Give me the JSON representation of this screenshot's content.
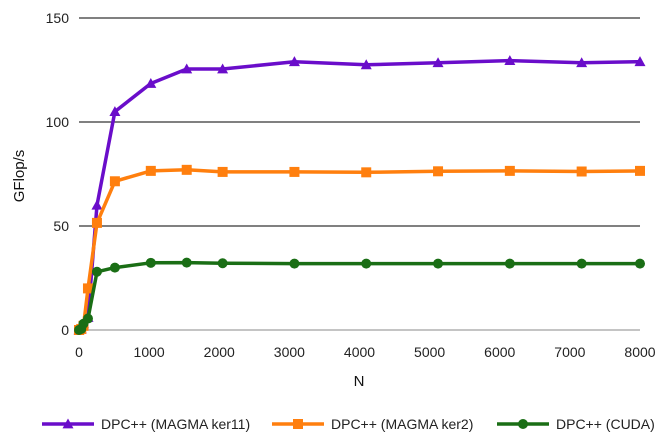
{
  "chart_data": {
    "type": "line",
    "xlabel": "N",
    "ylabel": "GFlop/s",
    "xlim": [
      0,
      8000
    ],
    "ylim": [
      0,
      150
    ],
    "xticks": [
      0,
      1000,
      2000,
      3000,
      4000,
      5000,
      6000,
      7000,
      8000
    ],
    "yticks": [
      0,
      50,
      100,
      150
    ],
    "grid": "horizontal",
    "legend_position": "bottom",
    "series": [
      {
        "name": "DPC++ (MAGMA ker11)",
        "color": "#6a0dca",
        "marker": "triangle",
        "x": [
          0,
          32,
          64,
          128,
          256,
          512,
          1024,
          1536,
          2048,
          3072,
          4096,
          5120,
          6144,
          7168,
          8000
        ],
        "y": [
          0,
          0.5,
          3,
          6,
          60,
          105,
          118.5,
          125.5,
          125.5,
          129,
          127.5,
          128.5,
          129.5,
          128.5,
          129
        ]
      },
      {
        "name": "DPC++ (MAGMA ker2)",
        "color": "#ff7f0e",
        "marker": "square",
        "x": [
          0,
          32,
          64,
          128,
          256,
          512,
          1024,
          1536,
          2048,
          3072,
          4096,
          5120,
          6144,
          7168,
          8000
        ],
        "y": [
          0,
          0.5,
          2,
          20,
          51.5,
          71.5,
          76.5,
          77,
          76,
          76,
          75.8,
          76.3,
          76.5,
          76.2,
          76.5
        ]
      },
      {
        "name": "DPC++ (CUDA)",
        "color": "#1a6e15",
        "marker": "circle",
        "x": [
          0,
          32,
          64,
          128,
          256,
          512,
          1024,
          1536,
          2048,
          3072,
          4096,
          5120,
          6144,
          7168,
          8000
        ],
        "y": [
          0,
          0.5,
          3,
          5.5,
          28,
          30,
          32.3,
          32.4,
          32.1,
          31.9,
          31.9,
          31.9,
          31.9,
          31.9,
          31.9
        ]
      }
    ]
  }
}
